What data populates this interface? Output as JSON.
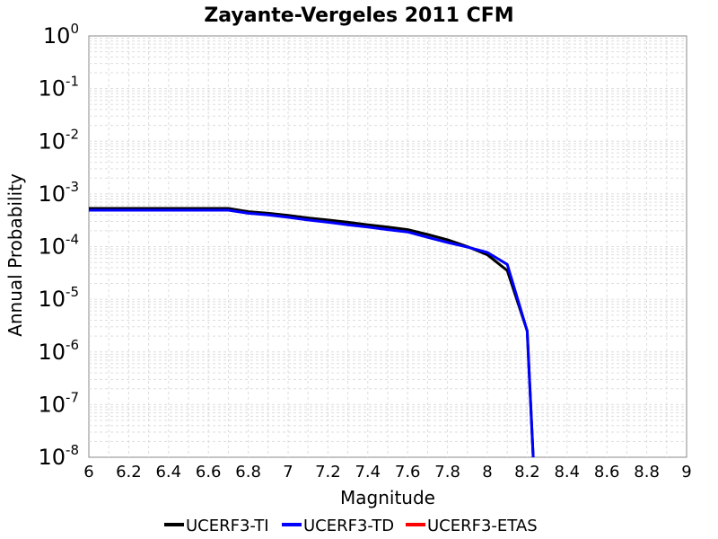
{
  "chart_data": {
    "type": "line",
    "title": "Zayante-Vergeles 2011 CFM",
    "xlabel": "Magnitude",
    "ylabel": "Annual Probability",
    "xlim": [
      6,
      9
    ],
    "ylim": [
      1e-08,
      1
    ],
    "yscale": "log",
    "grid": true,
    "legend_position": "bottom",
    "xticks": [
      "6",
      "6.2",
      "6.4",
      "6.6",
      "6.8",
      "7",
      "7.2",
      "7.4",
      "7.6",
      "7.8",
      "8",
      "8.2",
      "8.4",
      "8.6",
      "8.8",
      "9"
    ],
    "yticks": [
      {
        "base": "10",
        "exp": "0"
      },
      {
        "base": "10",
        "exp": "-1"
      },
      {
        "base": "10",
        "exp": "-2"
      },
      {
        "base": "10",
        "exp": "-3"
      },
      {
        "base": "10",
        "exp": "-4"
      },
      {
        "base": "10",
        "exp": "-5"
      },
      {
        "base": "10",
        "exp": "-6"
      },
      {
        "base": "10",
        "exp": "-7"
      },
      {
        "base": "10",
        "exp": "-8"
      }
    ],
    "series": [
      {
        "name": "UCERF3-TI",
        "color": "#000000",
        "x": [
          6.0,
          6.1,
          6.2,
          6.3,
          6.4,
          6.5,
          6.6,
          6.7,
          6.8,
          6.9,
          7.0,
          7.1,
          7.2,
          7.3,
          7.4,
          7.5,
          7.6,
          7.7,
          7.8,
          7.9,
          8.0,
          8.1,
          8.2,
          8.23
        ],
        "y": [
          0.00053,
          0.00053,
          0.00053,
          0.00053,
          0.00053,
          0.00053,
          0.00053,
          0.00053,
          0.00046,
          0.00043,
          0.00039,
          0.00035,
          0.00032,
          0.00029,
          0.00026,
          0.000235,
          0.00021,
          0.00017,
          0.000135,
          0.0001,
          7e-05,
          3.5e-05,
          2.5e-06,
          1e-08
        ]
      },
      {
        "name": "UCERF3-TD",
        "color": "#0000ff",
        "x": [
          6.0,
          6.1,
          6.2,
          6.3,
          6.4,
          6.5,
          6.6,
          6.7,
          6.8,
          6.9,
          7.0,
          7.1,
          7.2,
          7.3,
          7.4,
          7.5,
          7.6,
          7.7,
          7.8,
          7.9,
          8.0,
          8.1,
          8.2,
          8.23
        ],
        "y": [
          0.00049,
          0.00049,
          0.00049,
          0.00049,
          0.00049,
          0.00049,
          0.00049,
          0.00049,
          0.00043,
          0.0004,
          0.00036,
          0.00032,
          0.00029,
          0.00026,
          0.000235,
          0.00021,
          0.00019,
          0.00015,
          0.00012,
          9.75e-05,
          7.75e-05,
          4.6e-05,
          2.5e-06,
          1e-08
        ]
      },
      {
        "name": "UCERF3-ETAS",
        "color": "#ff0000",
        "x": [],
        "y": []
      }
    ]
  }
}
